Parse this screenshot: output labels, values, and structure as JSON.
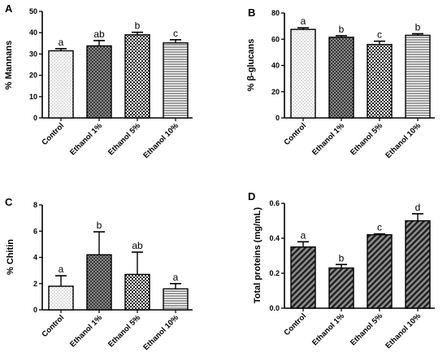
{
  "chart_data": [
    {
      "type": "bar",
      "panel": "A",
      "ylabel": "% Mannans",
      "categories": [
        "Control",
        "Ethanol 1%",
        "Ethanol 5%",
        "Ethanol 10%"
      ],
      "values": [
        31.5,
        33.8,
        39.0,
        35.2
      ],
      "errors": [
        1.0,
        2.5,
        1.2,
        1.5
      ],
      "significance": [
        "a",
        "ab",
        "b",
        "c"
      ],
      "patterns": [
        "dots",
        "crosshatch-dark",
        "checker",
        "horizontal-lines"
      ],
      "ylim": [
        0,
        50
      ],
      "yticks": [
        "0",
        "10",
        "20",
        "30",
        "40",
        "50"
      ]
    },
    {
      "type": "bar",
      "panel": "B",
      "ylabel": "% β-glucans",
      "categories": [
        "Control",
        "Ethanol 1%",
        "Ethanol 5%",
        "Ethanol 10%"
      ],
      "values": [
        67.5,
        61.5,
        56.0,
        63.0
      ],
      "errors": [
        1.2,
        1.2,
        2.5,
        1.2
      ],
      "significance": [
        "a",
        "b",
        "c",
        "b"
      ],
      "patterns": [
        "dots",
        "crosshatch-dark",
        "checker",
        "horizontal-lines"
      ],
      "ylim": [
        0,
        80
      ],
      "yticks": [
        "0",
        "20",
        "40",
        "60",
        "80"
      ]
    },
    {
      "type": "bar",
      "panel": "C",
      "ylabel": "% Chitin",
      "categories": [
        "Control",
        "Ethanol 1%",
        "Ethanol 5%",
        "Ethanol 10%"
      ],
      "values": [
        1.8,
        4.2,
        2.7,
        1.6
      ],
      "errors": [
        0.8,
        1.75,
        1.7,
        0.4
      ],
      "significance": [
        "a",
        "b",
        "ab",
        "a"
      ],
      "patterns": [
        "dots",
        "crosshatch-dark",
        "checker",
        "horizontal-lines"
      ],
      "ylim": [
        0,
        8
      ],
      "yticks": [
        "0",
        "2",
        "4",
        "6",
        "8"
      ]
    },
    {
      "type": "bar",
      "panel": "D",
      "ylabel": "Total proteins (mg/mL)",
      "categories": [
        "Control",
        "Ethanol 1%",
        "Ethanol 5%",
        "Ethanol 10%"
      ],
      "values": [
        0.35,
        0.23,
        0.42,
        0.5
      ],
      "errors": [
        0.03,
        0.02,
        0.005,
        0.04
      ],
      "significance": [
        "a",
        "b",
        "c",
        "d"
      ],
      "patterns": [
        "diagonal",
        "diagonal",
        "diagonal",
        "diagonal"
      ],
      "ylim": [
        0,
        0.6
      ],
      "yticks": [
        "0.0",
        "0.2",
        "0.4",
        "0.6"
      ]
    }
  ],
  "colors": {
    "ink": "#000000",
    "fill_light": "#ffffff",
    "fill_dark": "#3a3a3a",
    "diag_bg": "#8c8c8c"
  }
}
